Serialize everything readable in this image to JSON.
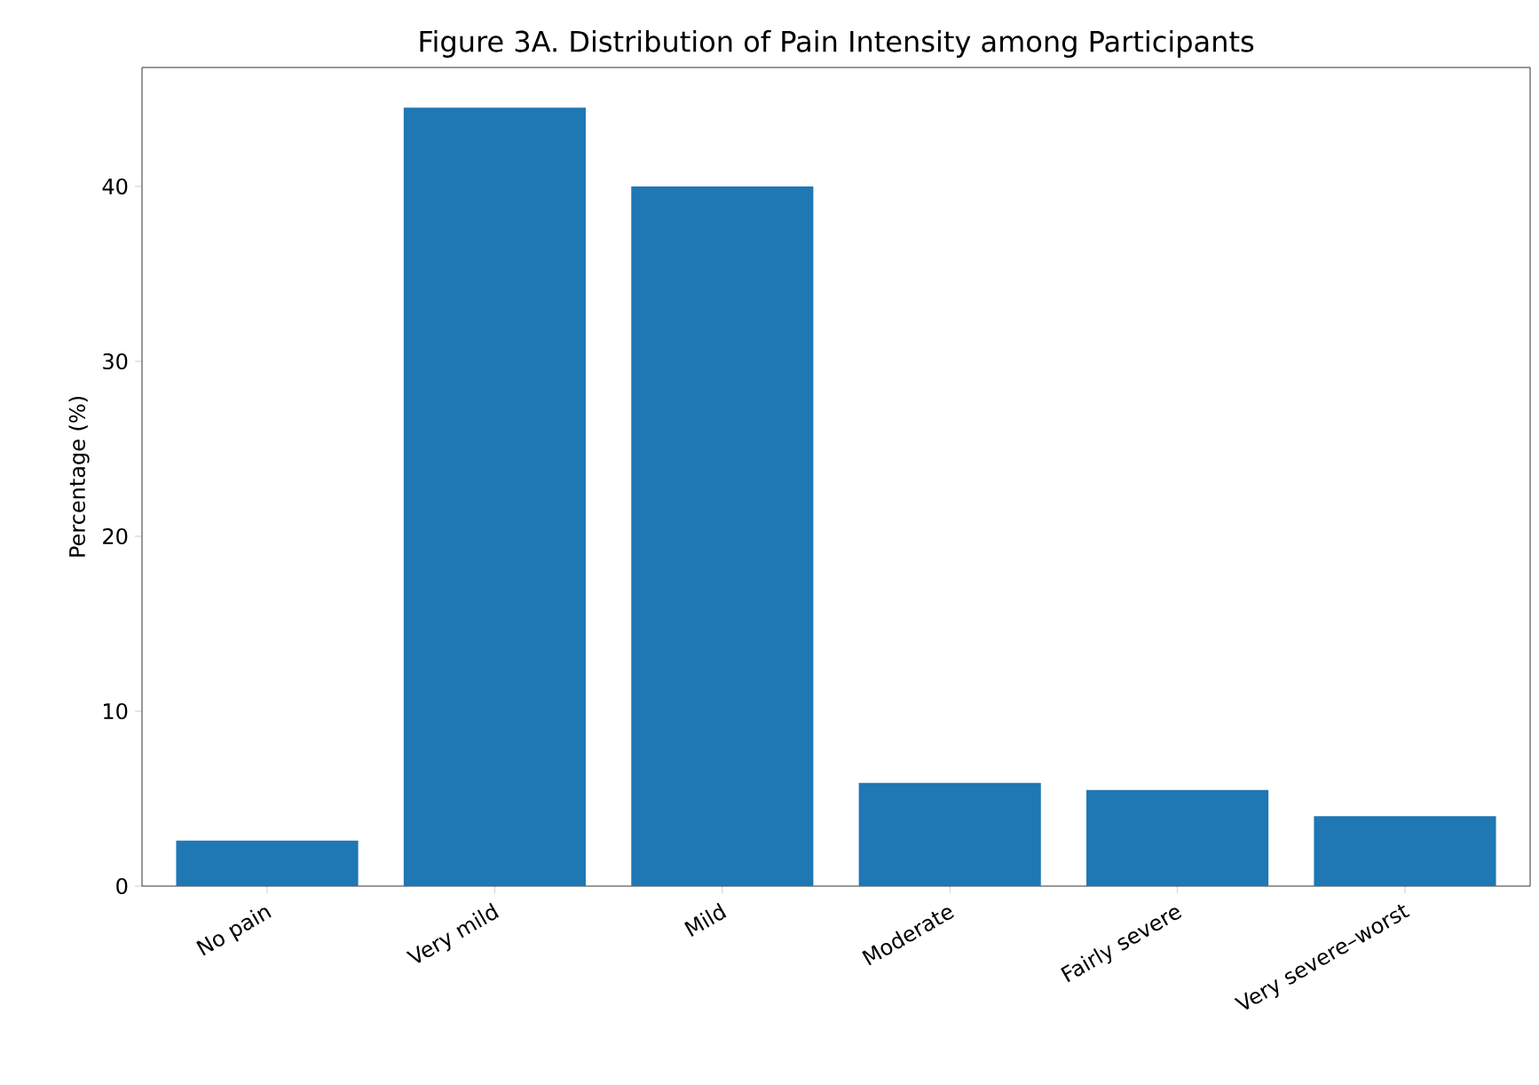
{
  "chart_data": {
    "type": "bar",
    "title": "Figure 3A. Distribution of Pain Intensity among Participants",
    "ylabel": "Percentage (%)",
    "categories": [
      "No pain",
      "Very mild",
      "Mild",
      "Moderate",
      "Fairly severe",
      "Very severe–worst"
    ],
    "values": [
      2.6,
      44.5,
      40.0,
      5.9,
      5.5,
      4.0
    ],
    "color": "#1f77b4",
    "ylim": [
      0,
      46.8
    ],
    "yticks": [
      0,
      10,
      20,
      30,
      40
    ],
    "grid": false
  }
}
